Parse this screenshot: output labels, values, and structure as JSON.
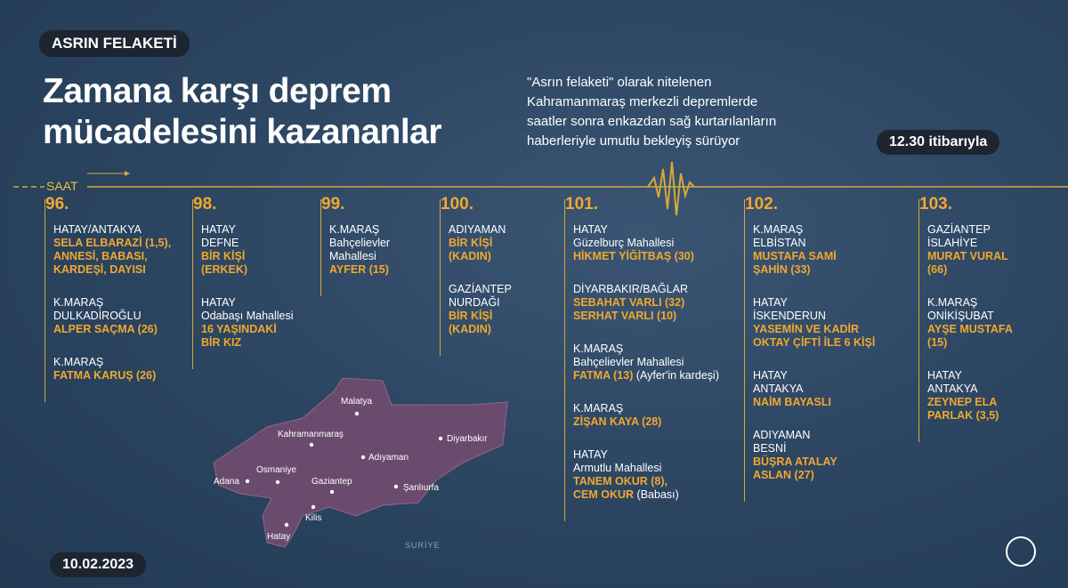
{
  "header": {
    "badge": "ASRIN FELAKETİ",
    "title": [
      "Zamana karşı deprem",
      "mücadelesini kazananlar"
    ],
    "intro": [
      "\"Asrın felaketi\" olarak nitelenen",
      "Kahramanmaraş merkezli depremlerde",
      "saatler sonra enkazdan sağ kurtarılanların",
      "haberleriyle umutlu bekleyiş sürüyor"
    ],
    "time": "12.30 itibarıyla"
  },
  "timeline": {
    "label": "SAAT"
  },
  "columns": [
    {
      "hour": "96.",
      "entries": [
        {
          "place": [
            "HATAY/ANTAKYA"
          ],
          "names": [
            "SELA ELBARAZİ (1,5),",
            "ANNESİ, BABASI,",
            "KARDEŞİ, DAYISI"
          ]
        },
        {
          "place": [
            "K.MARAŞ",
            "DULKADİROĞLU"
          ],
          "names": [
            "ALPER SAÇMA (26)"
          ]
        },
        {
          "place": [
            "K.MARAŞ"
          ],
          "names": [
            "FATMA KARUŞ (26)"
          ]
        }
      ]
    },
    {
      "hour": "98.",
      "entries": [
        {
          "place": [
            "HATAY",
            "DEFNE"
          ],
          "names": [
            "BİR KİŞİ",
            "(ERKEK)"
          ]
        },
        {
          "place": [
            "HATAY",
            "Odabaşı Mahallesi"
          ],
          "names": [
            "16 YAŞINDAKİ",
            "BİR KIZ"
          ]
        }
      ]
    },
    {
      "hour": "99.",
      "entries": [
        {
          "place": [
            "K.MARAŞ",
            "Bahçelievler",
            "Mahallesi"
          ],
          "names": [
            "AYFER (15)"
          ]
        }
      ]
    },
    {
      "hour": "100.",
      "entries": [
        {
          "place": [
            "ADIYAMAN"
          ],
          "names": [
            "BİR KİŞİ",
            "(KADIN)"
          ]
        },
        {
          "place": [
            "GAZİANTEP",
            "NURDAĞI"
          ],
          "names": [
            "BİR KİŞİ",
            "(KADIN)"
          ]
        }
      ]
    },
    {
      "hour": "101.",
      "entries": [
        {
          "place": [
            "HATAY",
            "Güzelburç Mahallesi"
          ],
          "names": [
            "HİKMET YİĞİTBAŞ (30)"
          ]
        },
        {
          "place": [
            "DİYARBAKIR/BAĞLAR"
          ],
          "names": [
            "SEBAHAT VARLI (32)",
            "SERHAT VARLI (10)"
          ]
        },
        {
          "place": [
            "K.MARAŞ",
            "Bahçelievler Mahallesi"
          ],
          "names": [
            "FATMA (13)"
          ],
          "note": "(Ayfer'in kardeşi)"
        },
        {
          "place": [
            "K.MARAŞ"
          ],
          "names": [
            "ZİŞAN KAYA (28)"
          ]
        },
        {
          "place": [
            "HATAY",
            "Armutlu Mahallesi"
          ],
          "names": [
            "TANEM OKUR (8),",
            "CEM OKUR"
          ],
          "note": "(Babası)"
        }
      ]
    },
    {
      "hour": "102.",
      "entries": [
        {
          "place": [
            "K.MARAŞ",
            "ELBİSTAN"
          ],
          "names": [
            "MUSTAFA SAMİ",
            "ŞAHİN (33)"
          ]
        },
        {
          "place": [
            "HATAY",
            "İSKENDERUN"
          ],
          "names": [
            "YASEMİN VE KADİR",
            "OKTAY ÇİFTİ İLE 6 KİŞİ"
          ]
        },
        {
          "place": [
            "HATAY",
            "ANTAKYA"
          ],
          "names": [
            "NAİM BAYASLI"
          ]
        },
        {
          "place": [
            "ADIYAMAN",
            "BESNİ"
          ],
          "names": [
            "BÜŞRA ATALAY",
            "ASLAN (27)"
          ]
        }
      ]
    },
    {
      "hour": "103.",
      "entries": [
        {
          "place": [
            "GAZİANTEP",
            "İSLAHİYE"
          ],
          "names": [
            "MURAT VURAL",
            "(66)"
          ]
        },
        {
          "place": [
            "K.MARAŞ",
            "ONİKİŞUBAT"
          ],
          "names": [
            "AYŞE MUSTAFA",
            "(15)"
          ]
        },
        {
          "place": [
            "HATAY",
            "ANTAKYA"
          ],
          "names": [
            "ZEYNEP ELA",
            "PARLAK (3,5)"
          ]
        }
      ]
    }
  ],
  "map": {
    "cities": [
      "Malatya",
      "Kahramanmaraş",
      "Diyarbakır",
      "Adıyaman",
      "Osmaniye",
      "Adana",
      "Gaziantep",
      "Şanlıurfa",
      "Kilis",
      "Hatay"
    ],
    "country": "SURİYE"
  },
  "footer": {
    "date": "10.02.2023"
  }
}
